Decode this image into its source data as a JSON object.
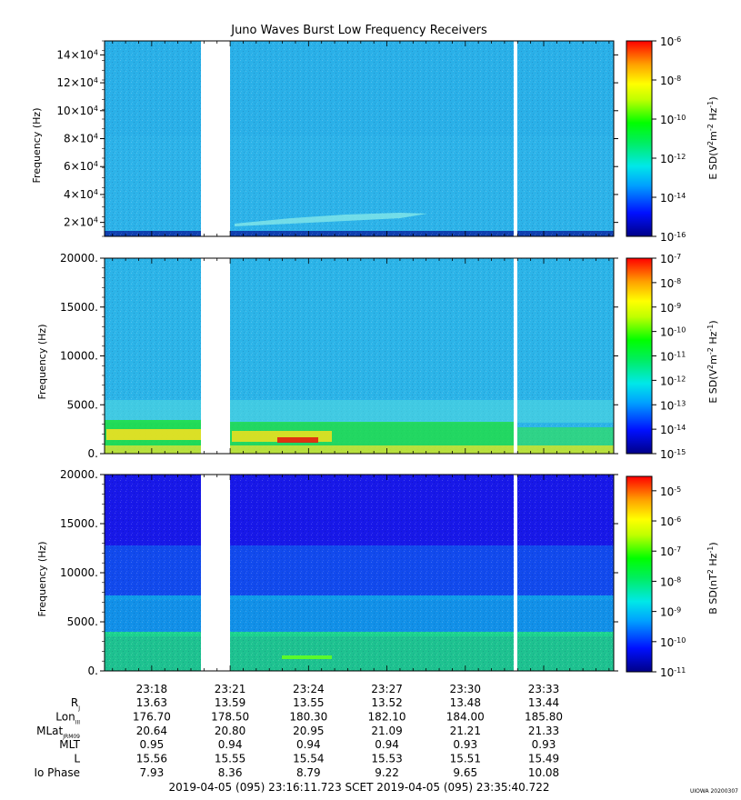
{
  "title": "Juno Waves Burst Low Frequency Receivers",
  "watermark": "UIOWA 20200307",
  "time_range": {
    "start": "2019-04-05 (095) 23:16:11.723",
    "frame": "SCET",
    "end": "2019-04-05 (095) 23:35:40.722"
  },
  "chart_data": [
    {
      "type": "heatmap",
      "panel": 1,
      "xlabel": "",
      "ylabel": "Frequency (Hz)",
      "x_range": [
        "23:16:11.723",
        "23:35:40.722"
      ],
      "ylim": [
        10000,
        150000
      ],
      "y_ticks": [
        {
          "value": 20000,
          "mant": "2×10",
          "exp": "4"
        },
        {
          "value": 40000,
          "mant": "4×10",
          "exp": "4"
        },
        {
          "value": 60000,
          "mant": "6×10",
          "exp": "4"
        },
        {
          "value": 80000,
          "mant": "8×10",
          "exp": "4"
        },
        {
          "value": 100000,
          "mant": "10×10",
          "exp": "4"
        },
        {
          "value": 120000,
          "mant": "12×10",
          "exp": "4"
        },
        {
          "value": 140000,
          "mant": "14×10",
          "exp": "4"
        }
      ],
      "colorbar": {
        "label_base": "E SD(V",
        "label_units": "m",
        "label_hz": " Hz",
        "scale": "log",
        "range": [
          1e-16,
          1e-06
        ],
        "ticks": [
          {
            "value": 1e-06,
            "exp": "-6"
          },
          {
            "value": 1e-08,
            "exp": "-8"
          },
          {
            "value": 1e-10,
            "exp": "-10"
          },
          {
            "value": 1e-12,
            "exp": "-12"
          },
          {
            "value": 1e-14,
            "exp": "-14"
          },
          {
            "value": 1e-16,
            "exp": "-16"
          }
        ]
      },
      "data_gaps": [
        [
          "23:20:09",
          "23:20:56"
        ],
        [
          "23:32:44",
          "23:32:50"
        ]
      ],
      "features": [
        {
          "description_freq_hz": [
            18000,
            28000
          ],
          "time": [
            "23:21:00",
            "23:30:30"
          ]
        }
      ]
    },
    {
      "type": "heatmap",
      "panel": 2,
      "xlabel": "",
      "ylabel": "Frequency (Hz)",
      "ylim": [
        0,
        20000
      ],
      "y_ticks": [
        {
          "value": 0,
          "label": "0."
        },
        {
          "value": 5000,
          "label": "5000."
        },
        {
          "value": 10000,
          "label": "10000."
        },
        {
          "value": 15000,
          "label": "15000."
        },
        {
          "value": 20000,
          "label": "20000."
        }
      ],
      "colorbar": {
        "label_base": "E SD(V",
        "label_units": "m",
        "label_hz": " Hz",
        "scale": "log",
        "range": [
          1e-15,
          1e-07
        ],
        "ticks": [
          {
            "value": 1e-07,
            "exp": "-7"
          },
          {
            "value": 1e-08,
            "exp": "-8"
          },
          {
            "value": 1e-09,
            "exp": "-9"
          },
          {
            "value": 1e-10,
            "exp": "-10"
          },
          {
            "value": 1e-11,
            "exp": "-11"
          },
          {
            "value": 1e-12,
            "exp": "-12"
          },
          {
            "value": 1e-13,
            "exp": "-13"
          },
          {
            "value": 1e-14,
            "exp": "-14"
          },
          {
            "value": 1e-15,
            "exp": "-15"
          }
        ]
      },
      "data_gaps": [
        [
          "23:20:09",
          "23:20:56"
        ],
        [
          "23:32:44",
          "23:32:50"
        ]
      ]
    },
    {
      "type": "heatmap",
      "panel": 3,
      "xlabel": "",
      "ylabel": "Frequency (Hz)",
      "ylim": [
        0,
        20000
      ],
      "y_ticks": [
        {
          "value": 0,
          "label": "0."
        },
        {
          "value": 5000,
          "label": "5000."
        },
        {
          "value": 10000,
          "label": "10000."
        },
        {
          "value": 15000,
          "label": "15000."
        },
        {
          "value": 20000,
          "label": "20000."
        }
      ],
      "colorbar": {
        "label_base": "B SD(nT",
        "label_units": "",
        "label_hz": " Hz",
        "scale": "log",
        "range": [
          1e-11,
          3e-05
        ],
        "ticks": [
          {
            "value": 1e-05,
            "exp": "-5"
          },
          {
            "value": 1e-06,
            "exp": "-6"
          },
          {
            "value": 1e-07,
            "exp": "-7"
          },
          {
            "value": 1e-08,
            "exp": "-8"
          },
          {
            "value": 1e-09,
            "exp": "-9"
          },
          {
            "value": 1e-10,
            "exp": "-10"
          },
          {
            "value": 1e-11,
            "exp": "-11"
          }
        ]
      },
      "data_gaps": [
        [
          "23:20:09",
          "23:20:56"
        ],
        [
          "23:32:44",
          "23:32:50"
        ]
      ]
    }
  ],
  "x_ticks": [
    "23:18",
    "23:21",
    "23:24",
    "23:27",
    "23:30",
    "23:33"
  ],
  "ephemeris": {
    "rows": [
      {
        "label": "R",
        "sub": "J",
        "values": [
          "13.63",
          "13.59",
          "13.55",
          "13.52",
          "13.48",
          "13.44"
        ]
      },
      {
        "label": "Lon",
        "sub": "III",
        "values": [
          "176.70",
          "178.50",
          "180.30",
          "182.10",
          "184.00",
          "185.80"
        ]
      },
      {
        "label": "MLat",
        "sub": "JRM09",
        "values": [
          "20.64",
          "20.80",
          "20.95",
          "21.09",
          "21.21",
          "21.33"
        ]
      },
      {
        "label": "MLT",
        "sub": "",
        "values": [
          "0.95",
          "0.94",
          "0.94",
          "0.94",
          "0.93",
          "0.93"
        ]
      },
      {
        "label": "L",
        "sub": "",
        "values": [
          "15.56",
          "15.55",
          "15.54",
          "15.53",
          "15.51",
          "15.49"
        ]
      },
      {
        "label": "Io Phase",
        "sub": "",
        "values": [
          "7.93",
          "8.36",
          "8.79",
          "9.22",
          "9.65",
          "10.08"
        ]
      }
    ]
  }
}
